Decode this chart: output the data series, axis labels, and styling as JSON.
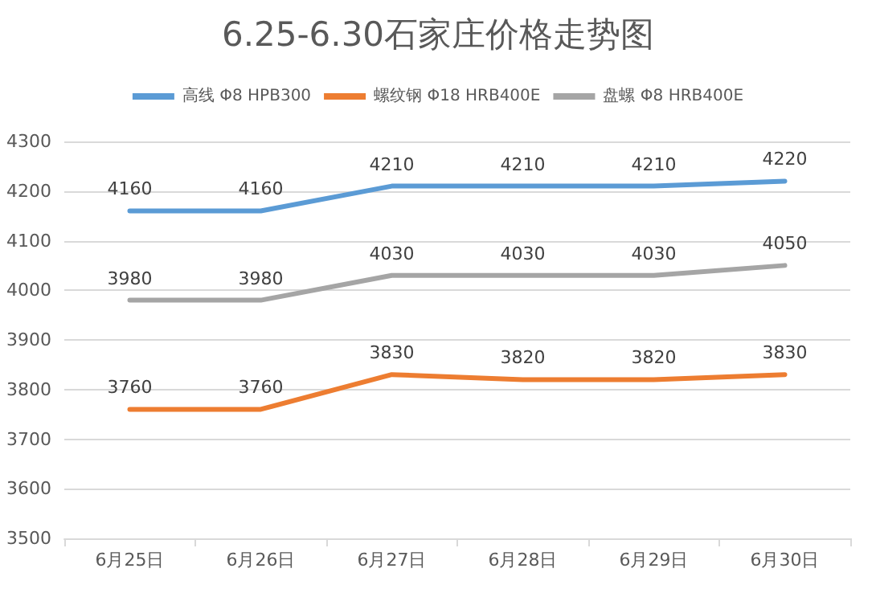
{
  "chart_data": {
    "type": "line",
    "title": "6.25-6.30石家庄价格走势图",
    "categories": [
      "6月25日",
      "6月26日",
      "6月27日",
      "6月28日",
      "6月29日",
      "6月30日"
    ],
    "series": [
      {
        "name": "高线 Φ8 HPB300",
        "color": "#5b9bd5",
        "values": [
          4160,
          4160,
          4210,
          4210,
          4210,
          4220
        ]
      },
      {
        "name": "螺纹钢 Φ18 HRB400E",
        "color": "#ed7d31",
        "values": [
          3760,
          3760,
          3830,
          3820,
          3820,
          3830
        ]
      },
      {
        "name": "盘螺 Φ8 HRB400E",
        "color": "#a5a5a5",
        "values": [
          3980,
          3980,
          4030,
          4030,
          4030,
          4050
        ]
      }
    ],
    "ylim": [
      3500,
      4300
    ],
    "yticks": [
      3500,
      3600,
      3700,
      3800,
      3900,
      4000,
      4100,
      4200,
      4300
    ],
    "grid": "y",
    "legend": "top",
    "data_labels": true,
    "marker": "none",
    "line_style": "solid"
  }
}
